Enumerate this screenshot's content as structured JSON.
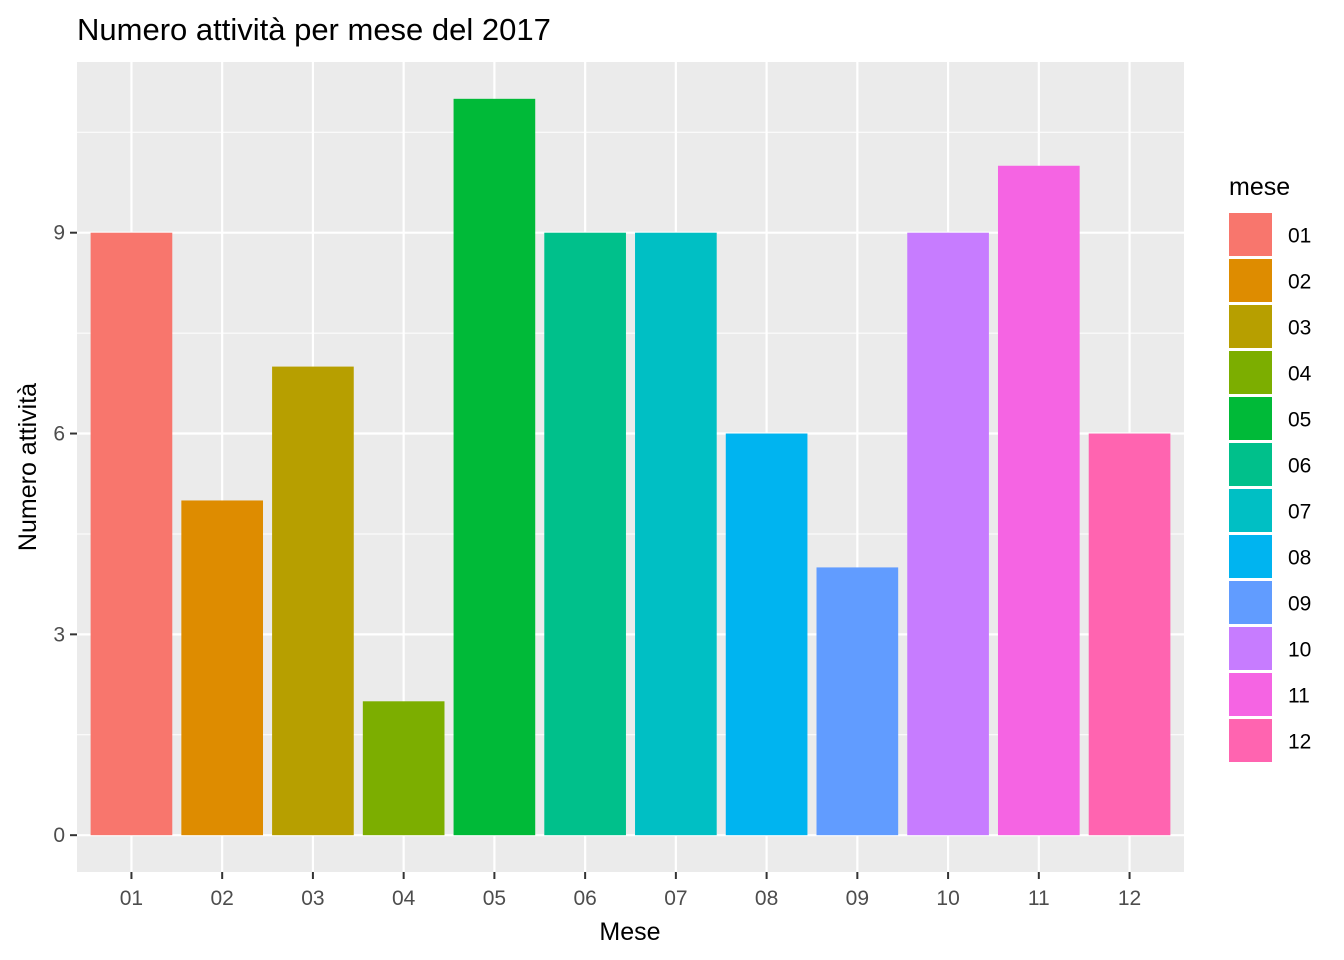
{
  "chart_data": {
    "type": "bar",
    "title": "Numero attività per mese del 2017",
    "xlabel": "Mese",
    "ylabel": "Numero attività",
    "categories": [
      "01",
      "02",
      "03",
      "04",
      "05",
      "06",
      "07",
      "08",
      "09",
      "10",
      "11",
      "12"
    ],
    "values": [
      9,
      5,
      7,
      2,
      11,
      9,
      9,
      6,
      4,
      9,
      10,
      6
    ],
    "colors": [
      "#F8766D",
      "#DE8C00",
      "#B79F00",
      "#7CAE00",
      "#00BA38",
      "#00C08B",
      "#00BFC4",
      "#00B4F0",
      "#619CFF",
      "#C77CFF",
      "#F564E3",
      "#FF64B0"
    ],
    "ylim": [
      -0.55,
      11.55
    ],
    "yticks": [
      0,
      3,
      6,
      9
    ],
    "grid": true,
    "legend": {
      "title": "mese",
      "placement": "right",
      "entries": [
        "01",
        "02",
        "03",
        "04",
        "05",
        "06",
        "07",
        "08",
        "09",
        "10",
        "11",
        "12"
      ]
    }
  }
}
